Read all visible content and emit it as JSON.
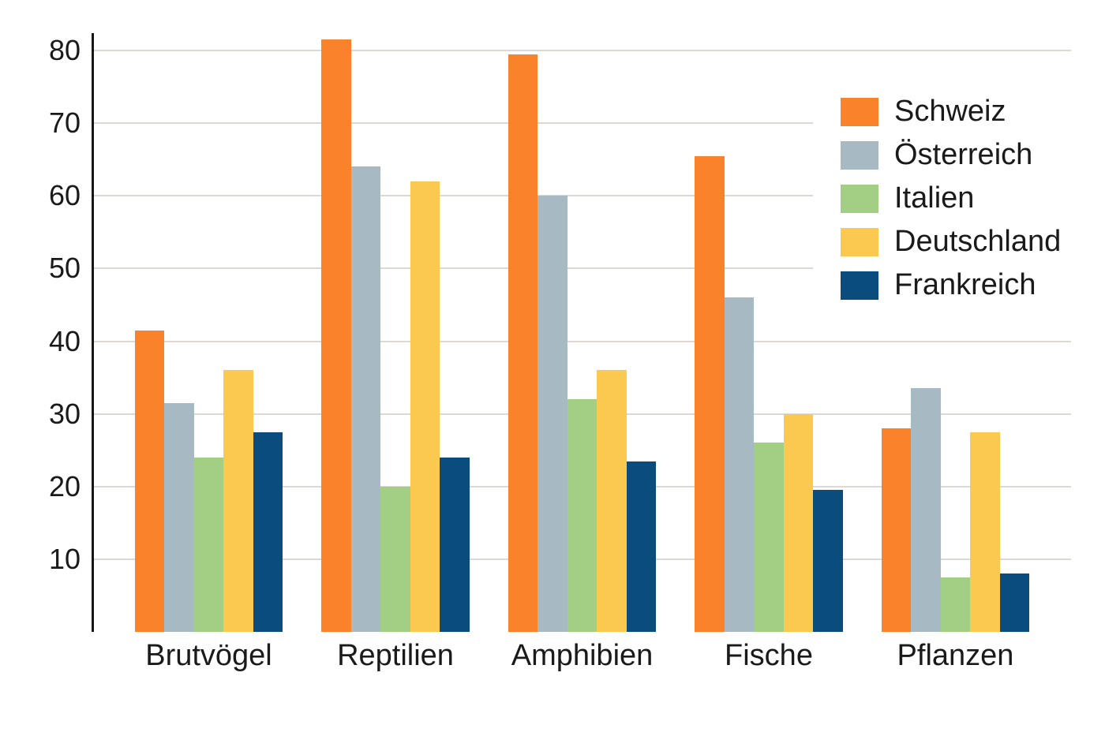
{
  "chart_data": {
    "type": "bar",
    "title": "",
    "xlabel": "",
    "ylabel": "",
    "categories": [
      "Brutvögel",
      "Reptilien",
      "Amphibien",
      "Fische",
      "Pflanzen"
    ],
    "series": [
      {
        "name": "Schweiz",
        "color": "#F9822B",
        "values": [
          41.5,
          81.5,
          79.5,
          65.5,
          28
        ]
      },
      {
        "name": "Österreich",
        "color": "#A7B9C3",
        "values": [
          31.5,
          64,
          60,
          46,
          33.5
        ]
      },
      {
        "name": "Italien",
        "color": "#A3CF85",
        "values": [
          24,
          20,
          32,
          26,
          7.5
        ]
      },
      {
        "name": "Deutschland",
        "color": "#FCC950",
        "values": [
          36,
          62,
          36,
          30,
          27.5
        ]
      },
      {
        "name": "Frankreich",
        "color": "#0B4C7E",
        "values": [
          27.5,
          24,
          23.5,
          19.5,
          8
        ]
      }
    ],
    "yticks": [
      10,
      20,
      30,
      40,
      50,
      60,
      70,
      80
    ],
    "ylim": [
      0,
      85
    ],
    "grid": true,
    "legend_position": "top-right",
    "axis_color": "#161616",
    "gridline_color": "#dcd8d4",
    "text_color": "#1a1a1a",
    "background_color": "#ffffff"
  }
}
